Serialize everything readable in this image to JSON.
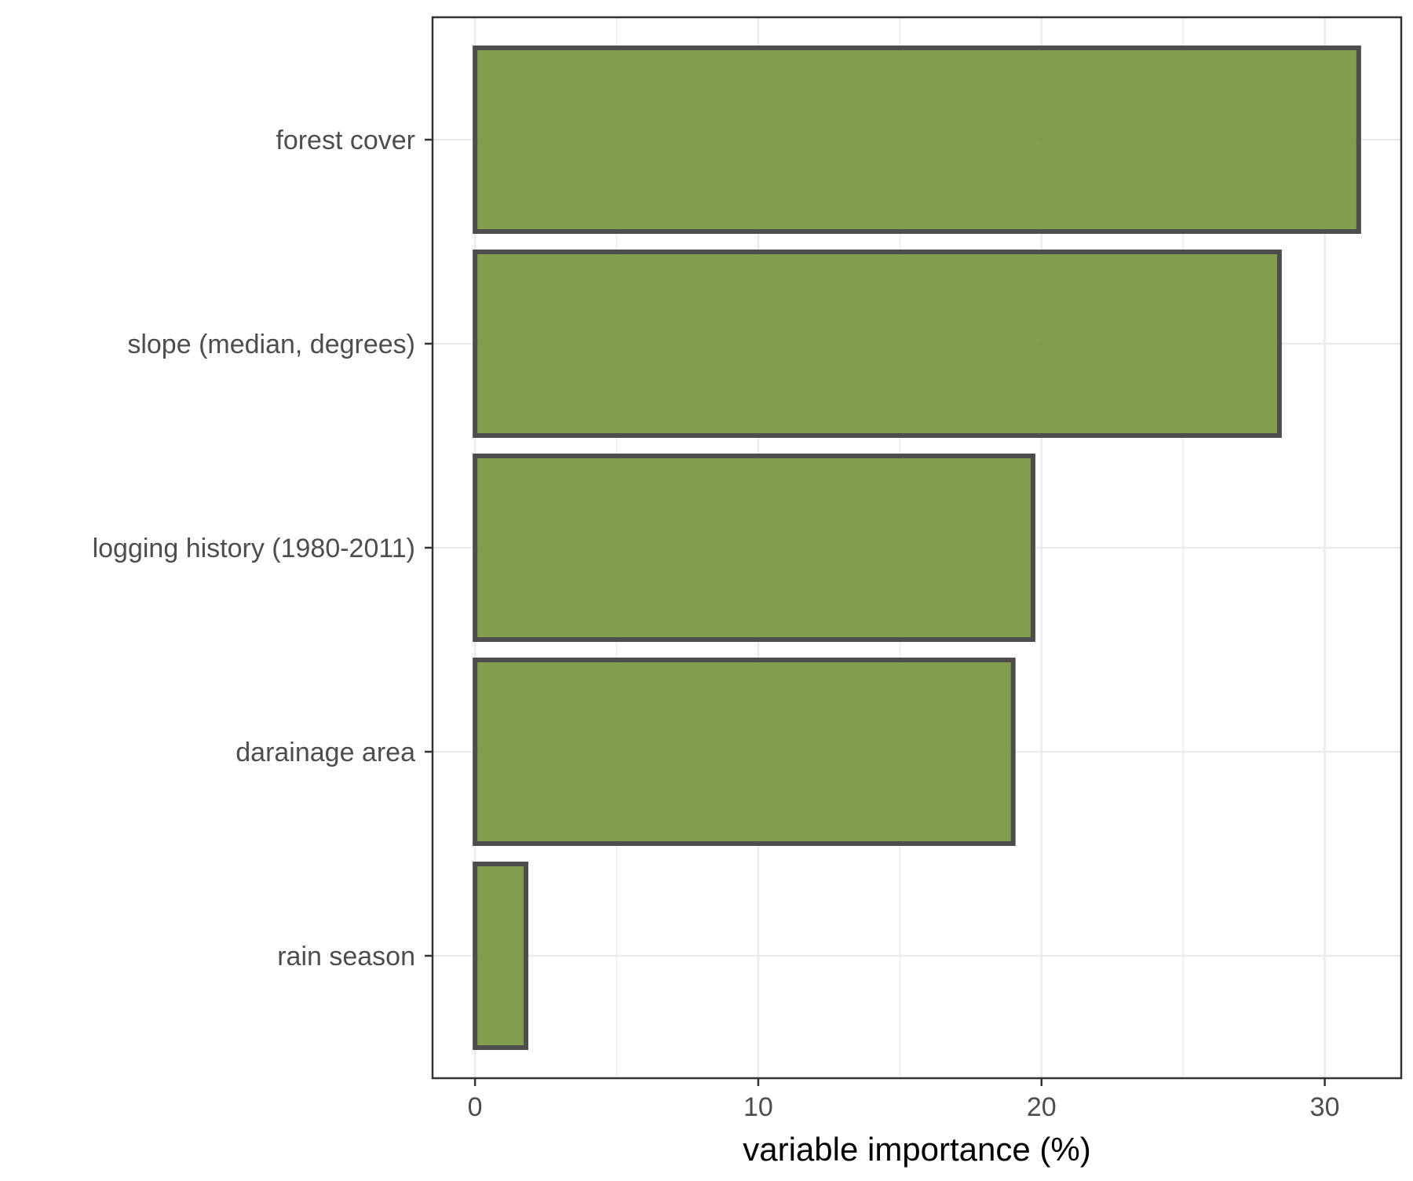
{
  "chart_data": {
    "type": "bar",
    "orientation": "horizontal",
    "categories": [
      "forest cover",
      "slope (median, degrees)",
      "logging history (1980-2011)",
      "darainage area",
      "rain season"
    ],
    "values": [
      31.2,
      28.4,
      19.7,
      19.0,
      1.8
    ],
    "xlabel": "variable importance (%)",
    "ylabel": "",
    "xlim": [
      -1.5,
      32.7
    ],
    "xticks": [
      0,
      10,
      20,
      30
    ],
    "xtick_labels": [
      "0",
      "10",
      "20",
      "30"
    ],
    "grid": true,
    "legend": "none",
    "colors": {
      "bar_fill": "#76923c",
      "bar_stroke": "#4d4d4d",
      "grid": "#ebebeb",
      "panel_border": "#333333"
    }
  }
}
